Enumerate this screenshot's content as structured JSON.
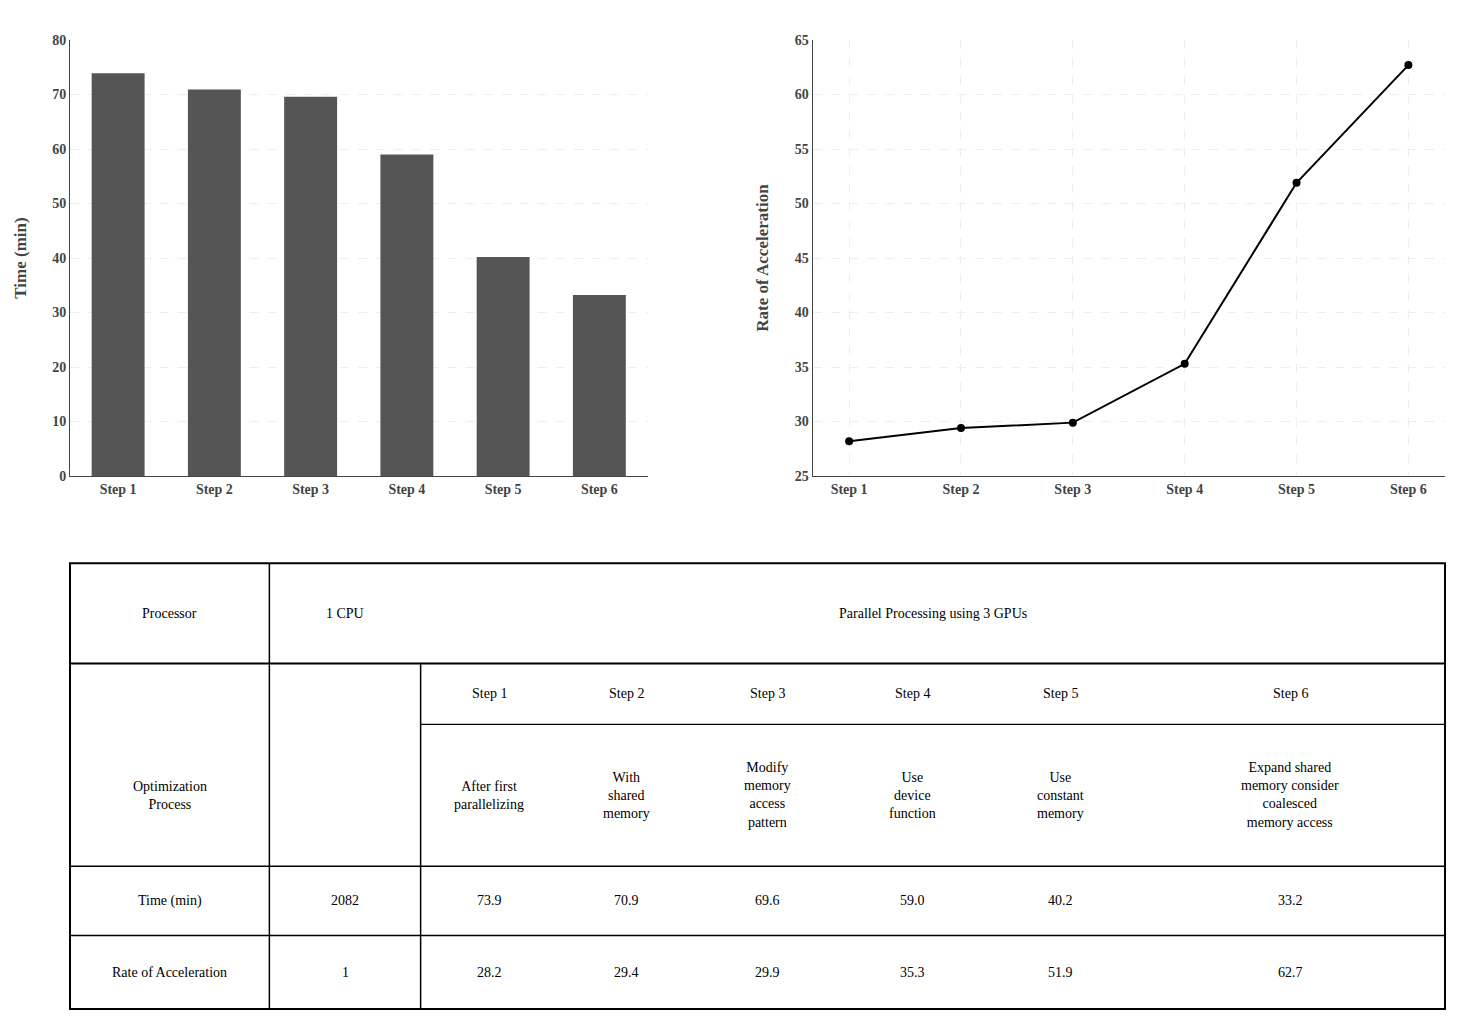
{
  "chart_data": [
    {
      "type": "bar",
      "categories": [
        "Step 1",
        "Step 2",
        "Step 3",
        "Step 4",
        "Step 5",
        "Step 6"
      ],
      "values": [
        73.9,
        70.9,
        69.6,
        59.0,
        40.2,
        33.2
      ],
      "color": "#555555",
      "ylim": [
        0,
        80
      ],
      "yticks": [
        0,
        10,
        20,
        30,
        40,
        50,
        60,
        70,
        80
      ],
      "ylabel": "Time (min)",
      "grid": "y"
    },
    {
      "type": "line",
      "categories": [
        "Step 1",
        "Step 2",
        "Step 3",
        "Step 4",
        "Step 5",
        "Step 6"
      ],
      "values": [
        28.2,
        29.4,
        29.9,
        35.3,
        51.9,
        62.7
      ],
      "color": "#000000",
      "marker": "circle",
      "ylim": [
        25,
        65
      ],
      "yticks": [
        25,
        30,
        35,
        40,
        45,
        50,
        55,
        60,
        65
      ],
      "ylabel": "Rate of Acceleration",
      "grid": true
    },
    {
      "type": "table",
      "header": [
        "Processor",
        "1 CPU",
        "Parallel Processing using 3 GPUs"
      ],
      "subheader": [
        "Step 1",
        "Step 2",
        "Step 3",
        "Step 4",
        "Step 5",
        "Step 6"
      ],
      "rows": [
        {
          "label": "Optimization\nProcess",
          "values": [
            null,
            "After first\nparallelizing",
            "With\nshared\nmemory",
            "Modify\nmemory\naccess\npattern",
            "Use\ndevice\nfunction",
            "Use\nconstant\nmemory",
            "Expand shared\nmemory consider\ncoalesced\nmemory access"
          ]
        },
        {
          "label": "Time (min)",
          "values": [
            "2082",
            "73.9",
            "70.9",
            "69.6",
            "59.0",
            "40.2",
            "33.2"
          ]
        },
        {
          "label": "Rate of Acceleration",
          "values": [
            "1",
            "28.2",
            "29.4",
            "29.9",
            "35.3",
            "51.9",
            "62.7"
          ]
        }
      ]
    }
  ]
}
